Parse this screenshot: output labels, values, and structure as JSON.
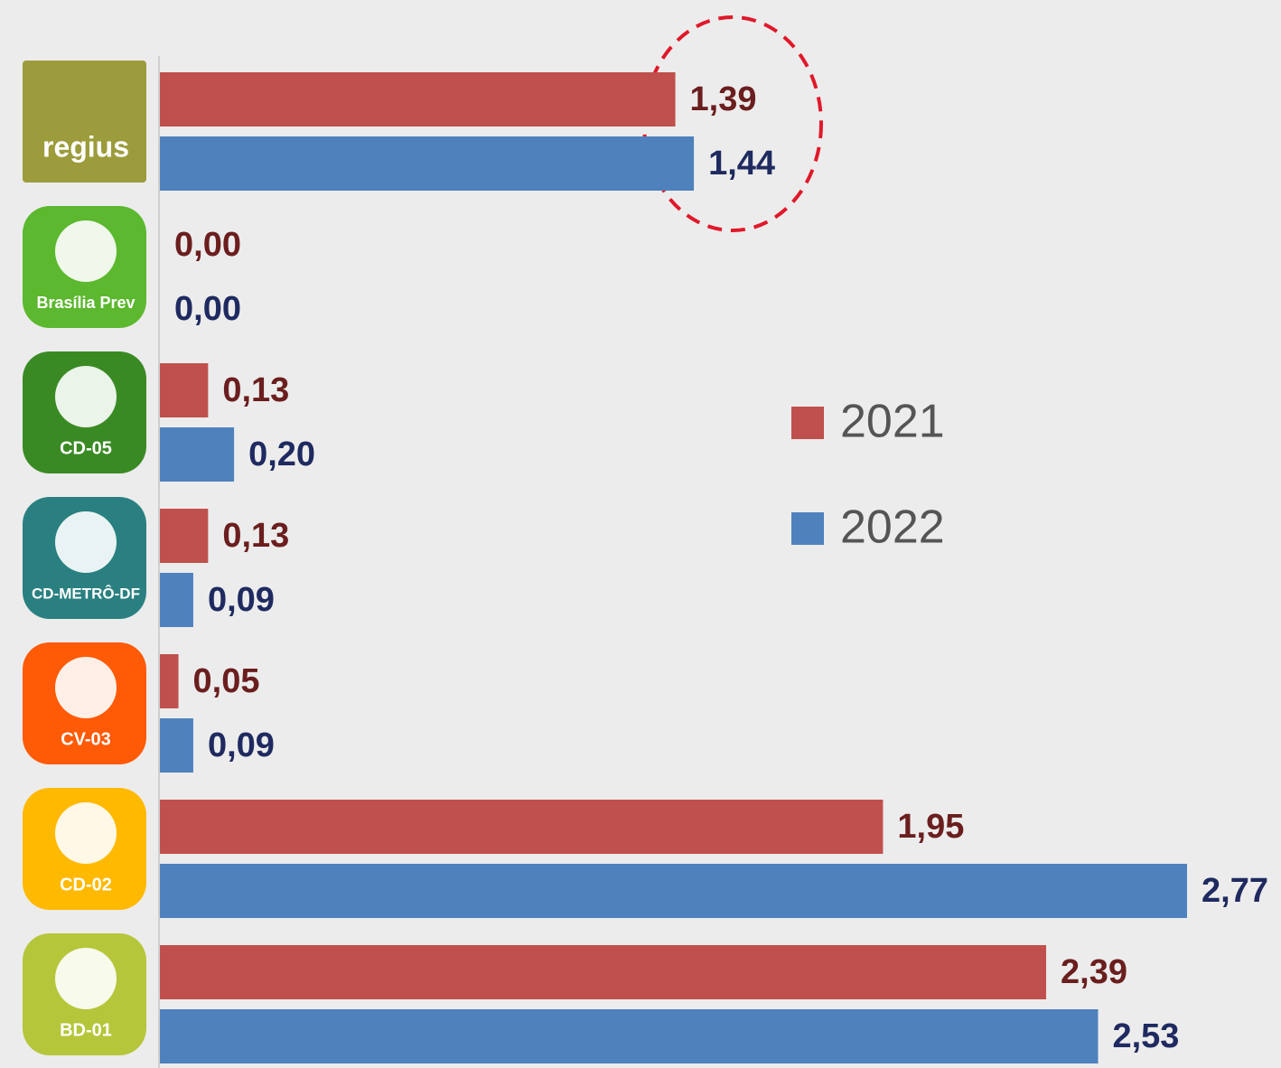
{
  "chart_data": {
    "type": "bar",
    "orientation": "horizontal",
    "categories": [
      "regius",
      "Brasília Prev",
      "CD-05",
      "CD-METRÔ-DF",
      "CV-03",
      "CD-02",
      "BD-01"
    ],
    "series": [
      {
        "name": "2021",
        "color": "#c0504d",
        "values": [
          1.39,
          0,
          0.13,
          0.13,
          0.05,
          1.95,
          2.39
        ],
        "value_labels": [
          "1,39",
          "0,00",
          "0,13",
          "0,13",
          "0,05",
          "1,95",
          "2,39"
        ]
      },
      {
        "name": "2022",
        "color": "#4f81bd",
        "values": [
          1.44,
          0,
          0.2,
          0.09,
          0.09,
          2.77,
          2.53
        ],
        "value_labels": [
          "1,44",
          "0,00",
          "0,20",
          "0,09",
          "0,09",
          "2,77",
          "2,53"
        ]
      }
    ],
    "legend": "right"
  }
}
